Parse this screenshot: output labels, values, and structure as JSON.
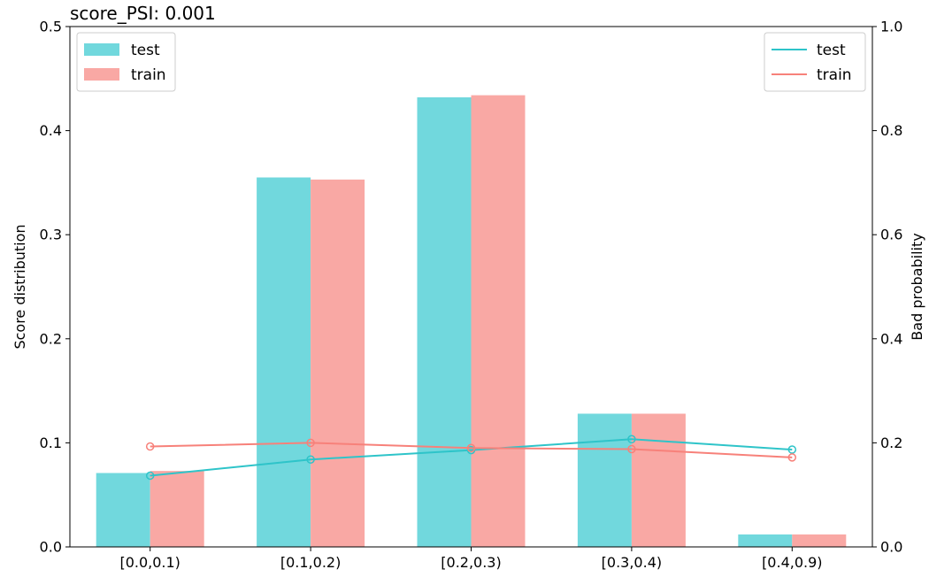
{
  "chart_data": {
    "type": "bar",
    "title": "score_PSI: 0.001",
    "categories": [
      "[0.0,0.1)",
      "[0.1,0.2)",
      "[0.2,0.3)",
      "[0.3,0.4)",
      "[0.4,0.9)"
    ],
    "ylabel": "Score distribution",
    "ylabel_right": "Bad probability",
    "ylim": [
      0,
      0.5
    ],
    "ylim_right": [
      0,
      1.0
    ],
    "yticks": [
      "0.0",
      "0.1",
      "0.2",
      "0.3",
      "0.4",
      "0.5"
    ],
    "yticks_right": [
      "0.0",
      "0.2",
      "0.4",
      "0.6",
      "0.8",
      "1.0"
    ],
    "bar_series": [
      {
        "name": "test",
        "color": "#71d8dd",
        "values": [
          0.071,
          0.355,
          0.432,
          0.128,
          0.012
        ]
      },
      {
        "name": "train",
        "color": "#f9a8a4",
        "values": [
          0.073,
          0.353,
          0.434,
          0.128,
          0.012
        ]
      }
    ],
    "line_series": [
      {
        "name": "test",
        "color": "#2ec4c9",
        "axis": "right",
        "values": [
          0.137,
          0.168,
          0.186,
          0.207,
          0.187
        ]
      },
      {
        "name": "train",
        "color": "#f7817a",
        "axis": "right",
        "values": [
          0.193,
          0.2,
          0.19,
          0.188,
          0.172
        ]
      }
    ],
    "bar_legend_position": "top-left",
    "line_legend_position": "top-right",
    "grid": false
  }
}
